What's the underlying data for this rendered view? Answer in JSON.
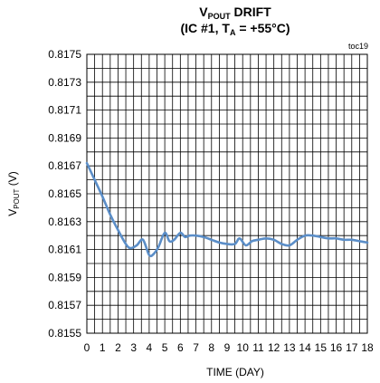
{
  "chart_data": {
    "type": "line",
    "title": "DRIFT",
    "title_var_main": "V",
    "title_var_sub": "POUT",
    "subtitle_prefix": "(IC #1, T",
    "subtitle_sub": "A",
    "subtitle_suffix": " = +55°C)",
    "annotation": "toc19",
    "xlabel": "TIME (DAY)",
    "ylabel_main": "V",
    "ylabel_sub": "POUT",
    "ylabel_suffix": " (V)",
    "xlim": [
      0,
      18
    ],
    "ylim": [
      0.8155,
      0.8175
    ],
    "x_ticks": [
      "0",
      "1",
      "2",
      "3",
      "4",
      "5",
      "6",
      "7",
      "8",
      "9",
      "10",
      "11",
      "12",
      "13",
      "14",
      "15",
      "16",
      "17",
      "18"
    ],
    "y_ticks": [
      "0.8155",
      "0.8157",
      "0.8159",
      "0.8161",
      "0.8163",
      "0.8165",
      "0.8167",
      "0.8169",
      "0.8171",
      "0.8173",
      "0.8175"
    ],
    "x_minor_step": 0.5,
    "y_minor_step": 0.0001,
    "grid": true,
    "line_color": "#5b8ec8",
    "series": [
      {
        "x": [
          0,
          0.5,
          1,
          1.5,
          2,
          2.5,
          2.8,
          3.2,
          3.6,
          4.0,
          4.3,
          4.6,
          5.0,
          5.3,
          5.6,
          6.0,
          6.3,
          6.6,
          7.0,
          7.5,
          8.0,
          8.5,
          9.0,
          9.5,
          9.8,
          10.2,
          10.6,
          11.0,
          11.5,
          12.0,
          12.5,
          13.0,
          13.5,
          14.0,
          14.5,
          15.0,
          15.5,
          16.0,
          16.5,
          17.0,
          17.5,
          18.0
        ],
        "y": [
          0.81672,
          0.8166,
          0.81648,
          0.81635,
          0.81624,
          0.81614,
          0.81611,
          0.81613,
          0.81617,
          0.81606,
          0.81607,
          0.81612,
          0.81622,
          0.81616,
          0.81617,
          0.81622,
          0.81619,
          0.8162,
          0.8162,
          0.81619,
          0.81617,
          0.81615,
          0.81614,
          0.81614,
          0.81618,
          0.81613,
          0.81616,
          0.81617,
          0.81618,
          0.81617,
          0.81614,
          0.81613,
          0.81617,
          0.8162,
          0.8162,
          0.81619,
          0.81618,
          0.81618,
          0.81617,
          0.81617,
          0.81616,
          0.81615
        ]
      }
    ]
  }
}
